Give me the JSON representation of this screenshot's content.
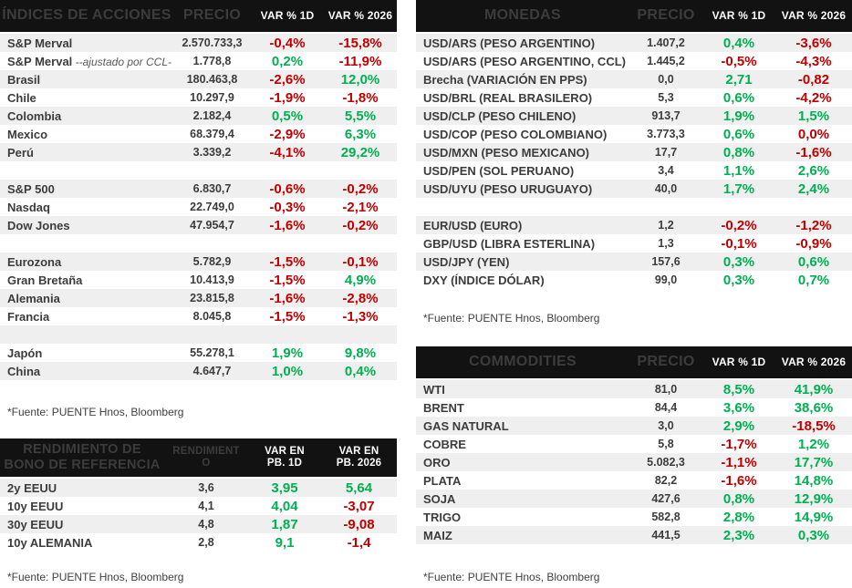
{
  "colors": {
    "positive": "#00B050",
    "negative": "#C00000",
    "header_bg": "#121212",
    "row_stripe": "#EFEFEF"
  },
  "source_note": "*Fuente: PUENTE Hnos, Bloomberg",
  "tables": {
    "indices": {
      "title": "ÍNDICES DE ACCIONES",
      "columns": [
        "PRECIO",
        "VAR % 1D",
        "VAR % 2026"
      ],
      "rows": [
        {
          "name": "S&P Merval",
          "price": "2.570.733,3",
          "var1": "-0,4%",
          "var1_dir": "neg",
          "var2": "-15,8%",
          "var2_dir": "neg"
        },
        {
          "name": "S&P Merval",
          "name_suffix": " --ajustado por CCL-",
          "price": "1.778,8",
          "var1": "0,2%",
          "var1_dir": "pos",
          "var2": "-11,9%",
          "var2_dir": "neg"
        },
        {
          "name": "Brasil",
          "price": "180.463,8",
          "var1": "-2,6%",
          "var1_dir": "neg",
          "var2": "12,0%",
          "var2_dir": "pos"
        },
        {
          "name": "Chile",
          "price": "10.297,9",
          "var1": "-1,9%",
          "var1_dir": "neg",
          "var2": "-1,8%",
          "var2_dir": "neg"
        },
        {
          "name": "Colombia",
          "price": "2.182,4",
          "var1": "0,5%",
          "var1_dir": "pos",
          "var2": "5,5%",
          "var2_dir": "pos"
        },
        {
          "name": "Mexico",
          "price": "68.379,4",
          "var1": "-2,9%",
          "var1_dir": "neg",
          "var2": "6,3%",
          "var2_dir": "pos"
        },
        {
          "name": "Perú",
          "price": "3.339,2",
          "var1": "-4,1%",
          "var1_dir": "neg",
          "var2": "29,2%",
          "var2_dir": "pos"
        },
        {
          "blank": true
        },
        {
          "name": "S&P 500",
          "price": "6.830,7",
          "var1": "-0,6%",
          "var1_dir": "neg",
          "var2": "-0,2%",
          "var2_dir": "neg"
        },
        {
          "name": "Nasdaq",
          "price": "22.749,0",
          "var1": "-0,3%",
          "var1_dir": "neg",
          "var2": "-2,1%",
          "var2_dir": "neg"
        },
        {
          "name": "Dow Jones",
          "price": "47.954,7",
          "var1": "-1,6%",
          "var1_dir": "neg",
          "var2": "-0,2%",
          "var2_dir": "neg"
        },
        {
          "blank": true
        },
        {
          "name": "Eurozona",
          "price": "5.782,9",
          "var1": "-1,5%",
          "var1_dir": "neg",
          "var2": "-0,1%",
          "var2_dir": "neg"
        },
        {
          "name": "Gran Bretaña",
          "price": "10.413,9",
          "var1": "-1,5%",
          "var1_dir": "neg",
          "var2": "4,9%",
          "var2_dir": "pos"
        },
        {
          "name": "Alemania",
          "price": "23.815,8",
          "var1": "-1,6%",
          "var1_dir": "neg",
          "var2": "-2,8%",
          "var2_dir": "neg"
        },
        {
          "name": "Francia",
          "price": "8.045,8",
          "var1": "-1,5%",
          "var1_dir": "neg",
          "var2": "-1,3%",
          "var2_dir": "neg"
        },
        {
          "blank": true
        },
        {
          "name": "Japón",
          "price": "55.278,1",
          "var1": "1,9%",
          "var1_dir": "pos",
          "var2": "9,8%",
          "var2_dir": "pos"
        },
        {
          "name": "China",
          "price": "4.647,7",
          "var1": "1,0%",
          "var1_dir": "pos",
          "var2": "0,4%",
          "var2_dir": "pos"
        }
      ]
    },
    "monedas": {
      "title": "MONEDAS",
      "columns": [
        "PRECIO",
        "VAR % 1D",
        "VAR % 2026"
      ],
      "rows": [
        {
          "name": "USD/ARS (PESO ARGENTINO)",
          "price": "1.407,2",
          "var1": "0,4%",
          "var1_dir": "pos",
          "var2": "-3,6%",
          "var2_dir": "neg"
        },
        {
          "name": "USD/ARS (PESO ARGENTINO, CCL)",
          "price": "1.445,2",
          "var1": "-0,5%",
          "var1_dir": "neg",
          "var2": "-4,3%",
          "var2_dir": "neg"
        },
        {
          "name": "Brecha (VARIACIÓN EN PPS)",
          "price": "0,0",
          "var1": "2,71",
          "var1_dir": "pos",
          "var2": "-0,82",
          "var2_dir": "neg"
        },
        {
          "name": "USD/BRL (REAL BRASILERO)",
          "price": "5,3",
          "var1": "0,6%",
          "var1_dir": "pos",
          "var2": "-4,2%",
          "var2_dir": "neg"
        },
        {
          "name": "USD/CLP (PESO CHILENO)",
          "price": "913,7",
          "var1": "1,9%",
          "var1_dir": "pos",
          "var2": "1,5%",
          "var2_dir": "pos"
        },
        {
          "name": "USD/COP (PESO COLOMBIANO)",
          "price": "3.773,3",
          "var1": "0,6%",
          "var1_dir": "pos",
          "var2": "0,0%",
          "var2_dir": "neg"
        },
        {
          "name": "USD/MXN (PESO MEXICANO)",
          "price": "17,7",
          "var1": "0,8%",
          "var1_dir": "pos",
          "var2": "-1,6%",
          "var2_dir": "neg"
        },
        {
          "name": "USD/PEN (SOL PERUANO)",
          "price": "3,4",
          "var1": "1,1%",
          "var1_dir": "pos",
          "var2": "2,6%",
          "var2_dir": "pos"
        },
        {
          "name": "USD/UYU (PESO URUGUAYO)",
          "price": "40,0",
          "var1": "1,7%",
          "var1_dir": "pos",
          "var2": "2,4%",
          "var2_dir": "pos"
        },
        {
          "blank": true
        },
        {
          "name": "EUR/USD (EURO)",
          "price": "1,2",
          "var1": "-0,2%",
          "var1_dir": "neg",
          "var2": "-1,2%",
          "var2_dir": "neg"
        },
        {
          "name": "GBP/USD (LIBRA ESTERLINA)",
          "price": "1,3",
          "var1": "-0,1%",
          "var1_dir": "neg",
          "var2": "-0,9%",
          "var2_dir": "neg"
        },
        {
          "name": "USD/JPY (YEN)",
          "price": "157,6",
          "var1": "0,3%",
          "var1_dir": "pos",
          "var2": "0,6%",
          "var2_dir": "pos"
        },
        {
          "name": "DXY (ÍNDICE DÓLAR)",
          "price": "99,0",
          "var1": "0,3%",
          "var1_dir": "pos",
          "var2": "0,7%",
          "var2_dir": "pos"
        }
      ]
    },
    "bonds": {
      "title": "RENDIMIENTO DE\nBONO DE REFERENCIA",
      "columns": [
        "RENDIMIENT\nO",
        "VAR EN\nPB. 1D",
        "VAR EN\nPB. 2026"
      ],
      "rows": [
        {
          "name": "2y EEUU",
          "price": "3,6",
          "var1": "3,95",
          "var1_dir": "pos",
          "var2": "5,64",
          "var2_dir": "pos"
        },
        {
          "name": "10y EEUU",
          "price": "4,1",
          "var1": "4,04",
          "var1_dir": "pos",
          "var2": "-3,07",
          "var2_dir": "neg"
        },
        {
          "name": "30y EEUU",
          "price": "4,8",
          "var1": "1,87",
          "var1_dir": "pos",
          "var2": "-9,08",
          "var2_dir": "neg"
        },
        {
          "name": "10y ALEMANIA",
          "price": "2,8",
          "var1": "9,1",
          "var1_dir": "pos",
          "var2": "-1,4",
          "var2_dir": "neg"
        }
      ]
    },
    "commodities": {
      "title": "COMMODITIES",
      "columns": [
        "PRECIO",
        "VAR % 1D",
        "VAR % 2026"
      ],
      "rows": [
        {
          "name": "WTI",
          "price": "81,0",
          "var1": "8,5%",
          "var1_dir": "pos",
          "var2": "41,9%",
          "var2_dir": "pos"
        },
        {
          "name": "BRENT",
          "price": "84,4",
          "var1": "3,6%",
          "var1_dir": "pos",
          "var2": "38,6%",
          "var2_dir": "pos"
        },
        {
          "name": "GAS NATURAL",
          "price": "3,0",
          "var1": "2,9%",
          "var1_dir": "pos",
          "var2": "-18,5%",
          "var2_dir": "neg"
        },
        {
          "name": "COBRE",
          "price": "5,8",
          "var1": "-1,7%",
          "var1_dir": "neg",
          "var2": "1,2%",
          "var2_dir": "pos"
        },
        {
          "name": "ORO",
          "price": "5.082,3",
          "var1": "-1,1%",
          "var1_dir": "neg",
          "var2": "17,7%",
          "var2_dir": "pos"
        },
        {
          "name": "PLATA",
          "price": "82,2",
          "var1": "-1,6%",
          "var1_dir": "neg",
          "var2": "14,8%",
          "var2_dir": "pos"
        },
        {
          "name": "SOJA",
          "price": "427,6",
          "var1": "0,8%",
          "var1_dir": "pos",
          "var2": "12,9%",
          "var2_dir": "pos"
        },
        {
          "name": "TRIGO",
          "price": "582,8",
          "var1": "2,8%",
          "var1_dir": "pos",
          "var2": "14,9%",
          "var2_dir": "pos"
        },
        {
          "name": "MAIZ",
          "price": "441,5",
          "var1": "2,3%",
          "var1_dir": "pos",
          "var2": "0,3%",
          "var2_dir": "pos"
        }
      ]
    }
  }
}
